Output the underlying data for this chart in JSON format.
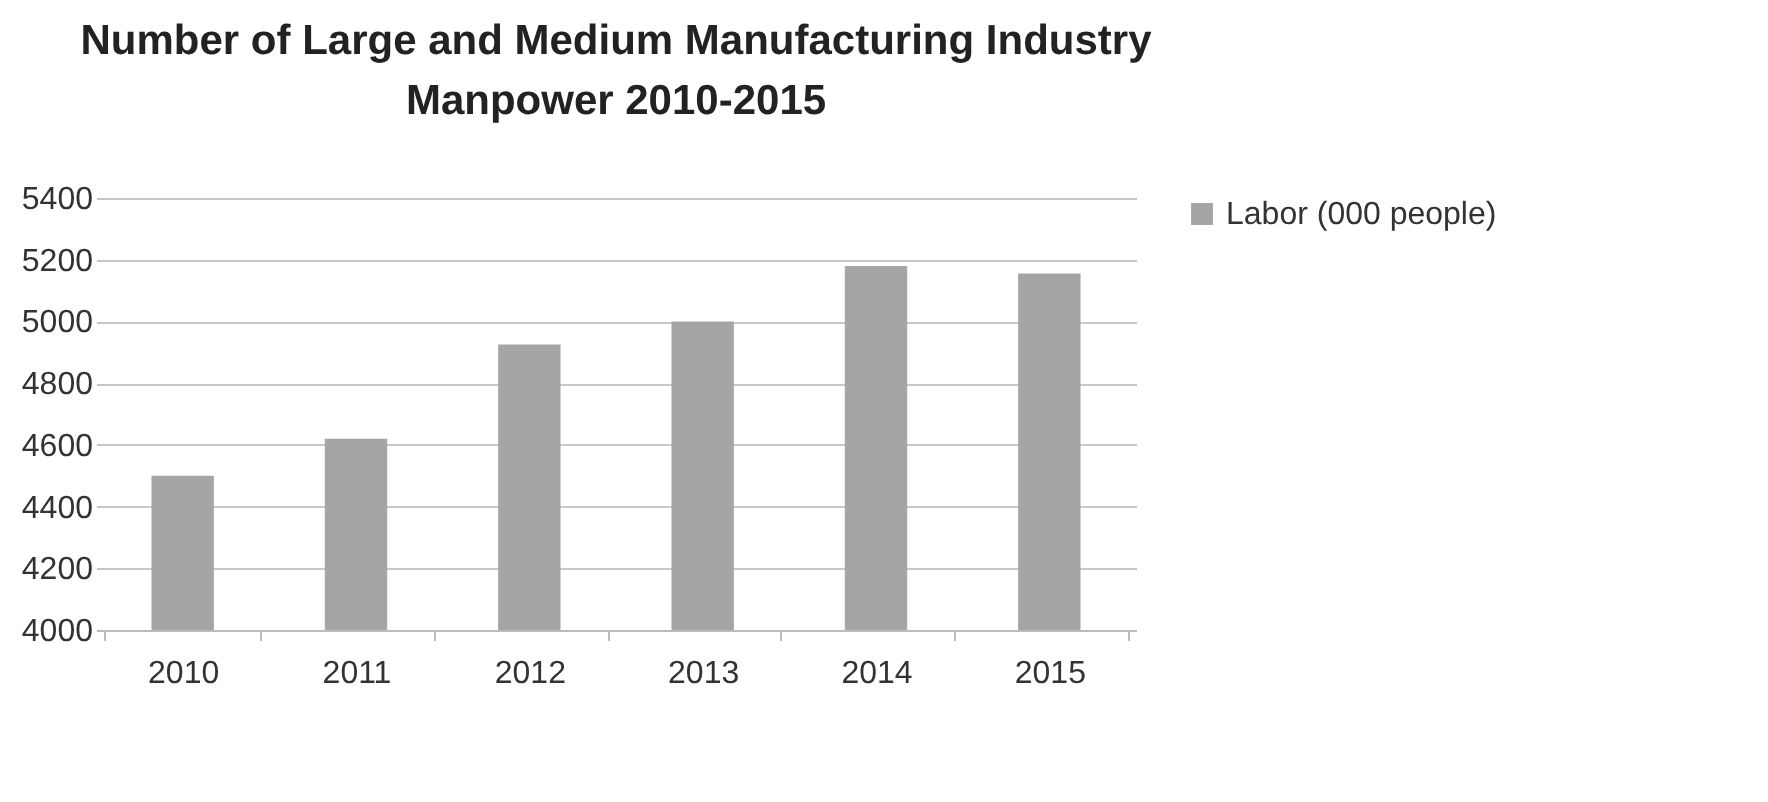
{
  "chart_data": {
    "type": "bar",
    "title": "Number of Large and Medium Manufacturing Industry Manpower 2010-2015",
    "categories": [
      "2010",
      "2011",
      "2012",
      "2013",
      "2014",
      "2015"
    ],
    "series": [
      {
        "name": "Labor (000 people)",
        "color": "#a5a5a5",
        "values": [
          4500,
          4620,
          4925,
          5000,
          5180,
          5155
        ]
      }
    ],
    "ylim": [
      4000,
      5400
    ],
    "yticks": [
      4000,
      4200,
      4400,
      4600,
      4800,
      5000,
      5200,
      5400
    ],
    "grid": "y",
    "legend": "right"
  }
}
